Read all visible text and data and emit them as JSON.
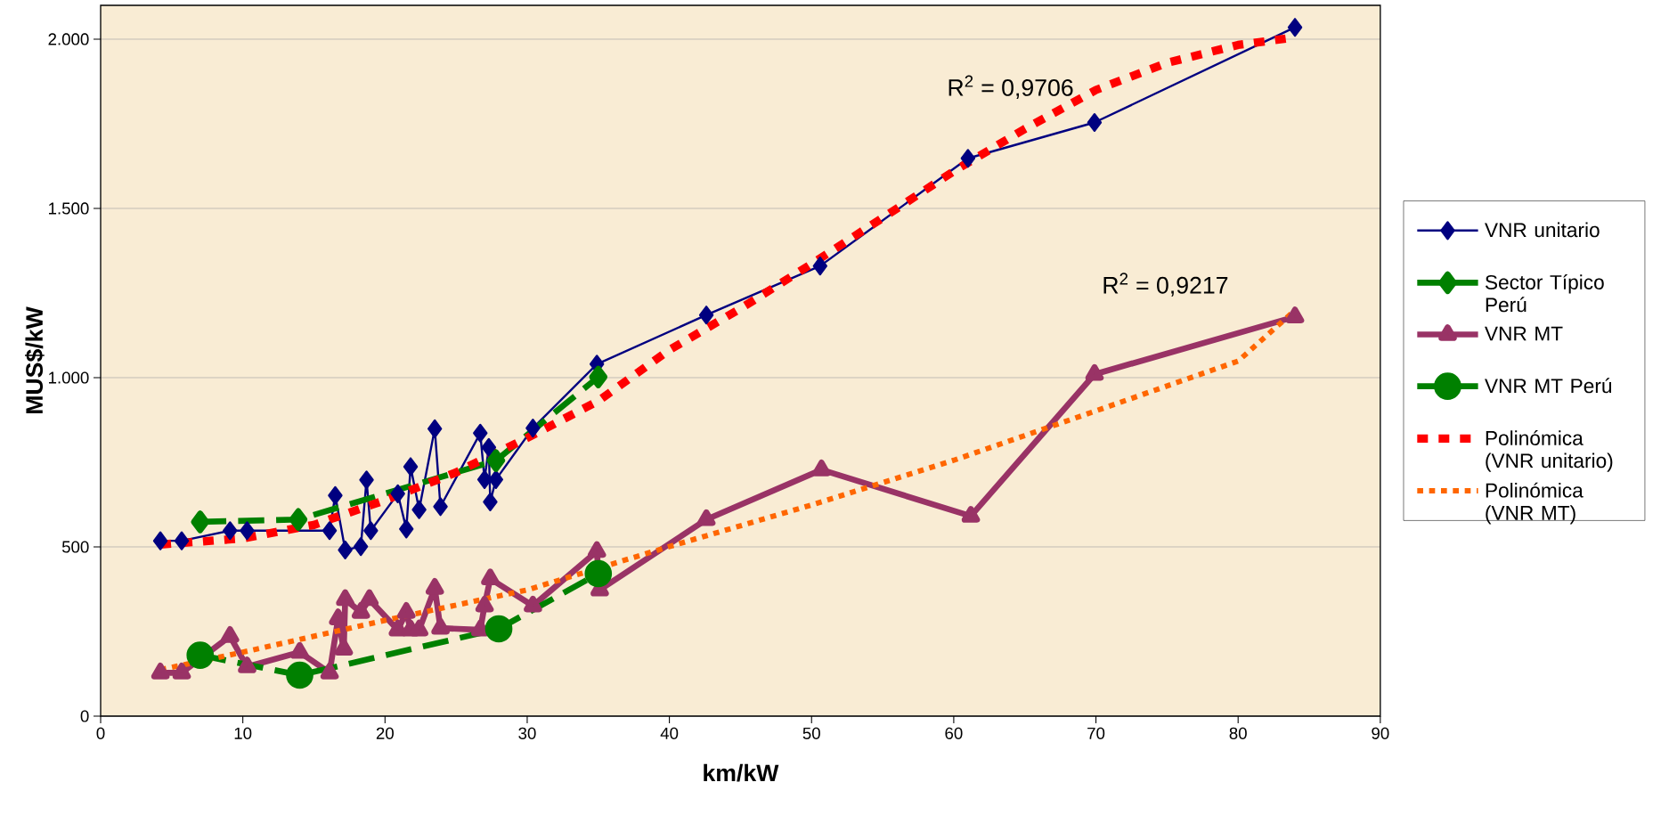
{
  "chart_data": {
    "type": "line",
    "xlabel": "km/kW",
    "ylabel": "MUS$/kW",
    "xlim": [
      0,
      90
    ],
    "xticks": [
      0,
      10,
      20,
      30,
      40,
      50,
      60,
      70,
      80,
      90
    ],
    "ylim": [
      0,
      2100
    ],
    "yticks": [
      0,
      500,
      {
        "value": 1000,
        "label": "1.000"
      },
      {
        "value": 1500,
        "label": "1.500"
      },
      {
        "value": 2000,
        "label": "2.000"
      }
    ],
    "grid": "y",
    "legend": "right",
    "annotations": [
      "R$^{2}$ = 0,9706",
      "R$^{2}$ = 0,9217"
    ],
    "series": [
      {
        "name": "VNR unitario",
        "color": "#000080",
        "marker": "diamond",
        "line_style": "solid",
        "x": [
          4.2,
          5.7,
          9.1,
          10.3,
          16.1,
          16.5,
          17.2,
          18.3,
          18.7,
          19.0,
          20.9,
          21.5,
          21.8,
          22.4,
          23.5,
          23.9,
          26.7,
          27.0,
          27.3,
          27.4,
          27.8,
          30.4,
          34.9,
          42.6,
          50.6,
          61.0,
          69.9,
          84.0
        ],
        "values": [
          518,
          518,
          548,
          548,
          548,
          652,
          491,
          501,
          698,
          548,
          657,
          553,
          737,
          610,
          849,
          619,
          836,
          699,
          794,
          633,
          699,
          851,
          1040,
          1185,
          1330,
          1648,
          1754,
          2035
        ]
      },
      {
        "name": "Sector Típico Perú",
        "color": "#008000",
        "marker": "diamond",
        "line_style": "dashed",
        "x": [
          7.0,
          13.9,
          27.8,
          35.0
        ],
        "values": [
          574,
          581,
          755,
          1002
        ]
      },
      {
        "name": "VNR MT",
        "color": "#993366",
        "marker": "triangle",
        "line_style": "solid",
        "x": [
          4.2,
          5.7,
          9.1,
          10.3,
          14.0,
          16.1,
          16.7,
          17.1,
          17.2,
          18.3,
          18.9,
          20.9,
          21.5,
          21.8,
          22.4,
          23.5,
          23.9,
          26.7,
          27.0,
          27.4,
          30.4,
          34.9,
          35.1,
          42.6,
          50.7,
          61.2,
          69.9,
          84.0
        ],
        "values": [
          128,
          128,
          236,
          146,
          189,
          128,
          288,
          198,
          345,
          307,
          345,
          255,
          307,
          255,
          255,
          378,
          260,
          255,
          326,
          406,
          326,
          487,
          373,
          581,
          728,
          591,
          1010,
          1180
        ]
      },
      {
        "name": "VNR MT Perú",
        "color": "#008000",
        "marker": "circle",
        "line_style": "dashed",
        "x": [
          7.0,
          14.0,
          28.0,
          35.0
        ],
        "values": [
          180,
          121,
          258,
          421
        ]
      },
      {
        "name": "Polinómica (VNR unitario)",
        "color": "#ff0000",
        "marker": "none",
        "line_style": "dashed",
        "x": [
          4.2,
          10,
          15,
          20,
          25,
          30,
          35,
          40,
          45,
          50,
          55,
          60,
          65,
          70,
          75,
          80,
          83.4
        ],
        "values": [
          507,
          525,
          565,
          638,
          720,
          822,
          931,
          1082,
          1204,
          1336,
          1472,
          1610,
          1735,
          1850,
          1930,
          1983,
          2002
        ]
      },
      {
        "name": "Polinómica (VNR MT)",
        "color": "#ff6600",
        "marker": "none",
        "line_style": "dotted",
        "x": [
          4.2,
          10,
          20,
          30,
          40,
          50,
          60,
          70,
          80,
          84.0
        ],
        "values": [
          137,
          189,
          283,
          373,
          501,
          624,
          756,
          902,
          1049,
          1199
        ]
      }
    ]
  }
}
